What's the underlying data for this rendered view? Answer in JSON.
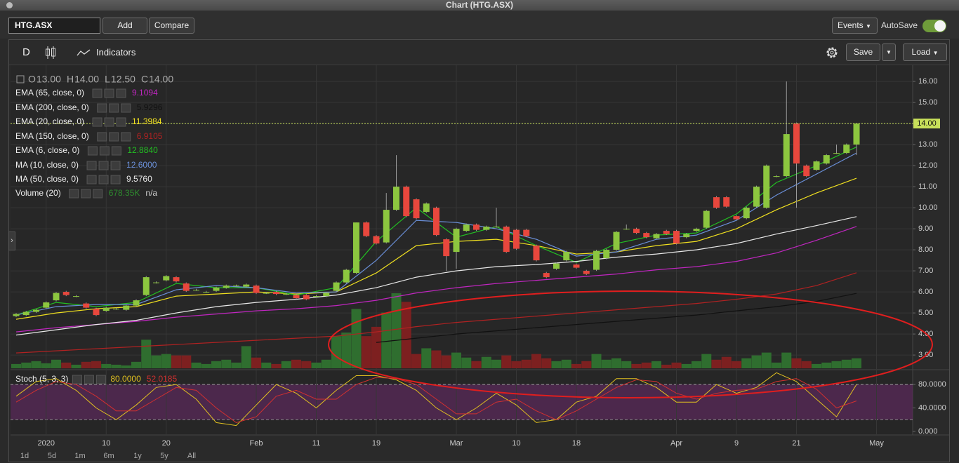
{
  "window": {
    "title": "Chart (HTG.ASX)"
  },
  "toolbar": {
    "symbol": "HTG.ASX",
    "add": "Add",
    "compare": "Compare",
    "events": "Events",
    "autosave": "AutoSave"
  },
  "chart_toolbar": {
    "period": "D",
    "indicators": "Indicators",
    "save": "Save",
    "load": "Load"
  },
  "ranges": [
    "1d",
    "5d",
    "1m",
    "6m",
    "1y",
    "5y",
    "All"
  ],
  "chart_data": {
    "type": "candlestick",
    "ohlc": [
      {
        "key": "O",
        "value": "13.00"
      },
      {
        "key": "H",
        "value": "14.00"
      },
      {
        "key": "L",
        "value": "12.50"
      },
      {
        "key": "C",
        "value": "14.00"
      }
    ],
    "categories": [
      null,
      null,
      null,
      "2020",
      null,
      null,
      null,
      null,
      null,
      "10",
      null,
      null,
      null,
      null,
      null,
      "20",
      null,
      null,
      null,
      null,
      null,
      null,
      null,
      null,
      "Feb",
      null,
      null,
      null,
      null,
      null,
      "11",
      null,
      null,
      null,
      null,
      null,
      "19",
      null,
      null,
      null,
      null,
      null,
      null,
      null,
      "Mar",
      null,
      null,
      null,
      null,
      null,
      "10",
      null,
      null,
      null,
      null,
      null,
      "18",
      null,
      null,
      null,
      null,
      null,
      null,
      null,
      null,
      null,
      "Apr",
      null,
      null,
      null,
      null,
      null,
      "9",
      null,
      null,
      null,
      null,
      null,
      "21",
      null,
      null,
      null,
      null,
      null,
      null,
      null,
      "May"
    ],
    "open": [
      4.85,
      4.9,
      5.05,
      5.25,
      5.6,
      6.0,
      5.8,
      5.45,
      5.2,
      5.1,
      5.2,
      5.15,
      5.35,
      5.85,
      6.45,
      6.55,
      6.7,
      6.4,
      6.1,
      6.0,
      6.05,
      6.2,
      6.3,
      6.25,
      6.3,
      5.95,
      6.0,
      5.9,
      5.85,
      5.85,
      5.8,
      5.8,
      6.05,
      6.45,
      6.9,
      9.3,
      8.65,
      8.35,
      9.9,
      11.0,
      10.4,
      9.8,
      10.0,
      8.5,
      7.9,
      8.9,
      9.2,
      8.95,
      9.1,
      9.1,
      8.95,
      8.95,
      8.2,
      6.9,
      7.1,
      7.5,
      7.3,
      7.0,
      7.05,
      7.6,
      8.0,
      9.0,
      9.0,
      8.8,
      8.55,
      8.9,
      8.9,
      8.6,
      8.9,
      9.05,
      10.5,
      10.5,
      9.6,
      9.5,
      10.05,
      10.0,
      11.5,
      11.5,
      14.0,
      12.0,
      11.8,
      12.1,
      12.6,
      12.6,
      13.0,
      null,
      null
    ],
    "high": [
      5.0,
      5.1,
      5.2,
      5.55,
      6.0,
      6.05,
      5.85,
      5.5,
      5.25,
      5.3,
      5.25,
      5.4,
      5.65,
      6.75,
      6.5,
      6.8,
      6.75,
      6.45,
      6.15,
      6.05,
      6.25,
      6.35,
      6.35,
      6.4,
      6.35,
      6.0,
      6.05,
      5.95,
      5.9,
      5.9,
      5.85,
      6.0,
      6.5,
      7.1,
      9.3,
      9.35,
      8.7,
      10.7,
      12.5,
      11.05,
      10.45,
      10.25,
      10.05,
      8.55,
      9.05,
      9.25,
      9.25,
      9.15,
      10.0,
      9.15,
      9.0,
      9.0,
      8.25,
      6.95,
      7.4,
      7.95,
      7.35,
      7.05,
      8.0,
      8.05,
      8.9,
      9.2,
      9.05,
      8.85,
      8.8,
      8.95,
      8.95,
      8.8,
      9.05,
      9.9,
      10.55,
      10.55,
      9.65,
      10.05,
      11.05,
      12.05,
      11.55,
      16.0,
      14.05,
      12.05,
      12.25,
      12.55,
      13.0,
      13.05,
      14.0,
      null,
      null
    ],
    "low": [
      4.8,
      4.85,
      5.0,
      5.2,
      5.55,
      5.8,
      5.75,
      5.2,
      4.85,
      5.05,
      5.15,
      5.1,
      5.3,
      5.8,
      6.4,
      6.5,
      6.45,
      6.0,
      6.05,
      5.95,
      6.0,
      6.15,
      6.25,
      6.2,
      5.9,
      5.9,
      5.85,
      5.85,
      5.65,
      5.6,
      5.75,
      5.75,
      6.0,
      6.4,
      6.85,
      8.6,
      8.25,
      8.3,
      9.85,
      9.55,
      9.45,
      9.75,
      8.65,
      7.0,
      7.1,
      8.85,
      8.9,
      8.9,
      9.05,
      7.85,
      8.0,
      8.6,
      7.45,
      6.65,
      7.05,
      7.45,
      7.1,
      6.8,
      7.0,
      7.55,
      7.95,
      8.95,
      8.75,
      8.55,
      8.5,
      8.7,
      8.25,
      8.55,
      8.85,
      9.0,
      9.95,
      10.0,
      9.4,
      9.45,
      10.0,
      9.95,
      11.45,
      11.45,
      10.0,
      11.45,
      11.75,
      12.05,
      12.55,
      12.55,
      12.5,
      null,
      null
    ],
    "close": [
      4.95,
      5.05,
      5.15,
      5.5,
      5.95,
      5.85,
      5.8,
      5.25,
      4.9,
      5.25,
      5.2,
      5.35,
      5.6,
      6.7,
      6.45,
      6.75,
      6.5,
      6.05,
      6.1,
      6.0,
      6.2,
      6.3,
      6.3,
      6.35,
      5.95,
      5.95,
      5.9,
      5.9,
      5.7,
      5.65,
      5.8,
      5.95,
      6.45,
      7.05,
      9.3,
      8.65,
      8.3,
      9.9,
      11.0,
      9.6,
      9.5,
      10.2,
      8.7,
      7.7,
      9.0,
      9.2,
      8.95,
      9.1,
      9.1,
      7.9,
      8.05,
      8.65,
      7.5,
      6.7,
      7.35,
      7.9,
      7.15,
      6.85,
      7.95,
      8.0,
      8.85,
      9.0,
      8.8,
      8.6,
      8.75,
      8.75,
      8.3,
      8.75,
      9.0,
      9.85,
      10.0,
      10.05,
      9.45,
      10.0,
      11.0,
      12.0,
      11.5,
      13.5,
      12.1,
      11.5,
      12.2,
      12.5,
      12.6,
      13.0,
      14.0,
      null,
      null
    ],
    "volume": [
      180,
      240,
      300,
      210,
      360,
      240,
      150,
      270,
      300,
      180,
      150,
      120,
      270,
      1200,
      540,
      600,
      540,
      540,
      240,
      180,
      300,
      360,
      240,
      930,
      450,
      240,
      180,
      300,
      360,
      300,
      240,
      360,
      1350,
      1500,
      2490,
      1350,
      1740,
      2340,
      3150,
      2790,
      600,
      840,
      750,
      540,
      660,
      450,
      300,
      480,
      360,
      540,
      300,
      360,
      600,
      420,
      300,
      360,
      180,
      300,
      600,
      360,
      420,
      300,
      180,
      240,
      300,
      150,
      240,
      180,
      300,
      600,
      360,
      480,
      300,
      420,
      540,
      660,
      240,
      660,
      420,
      300,
      180,
      240,
      300,
      360,
      420,
      null,
      null
    ],
    "up_color": "#8cc63f",
    "down_color": "#e8473d",
    "volume_up_color": "#2f6e2f",
    "volume_down_color": "#7d2020",
    "volume_name": "Volume (20)",
    "volume_readout": "678.35K",
    "volume_status": "n/a",
    "volume_readout_color": "#2e8b2e",
    "lines": {
      "x": [
        0,
        4,
        8,
        12,
        16,
        20,
        24,
        28,
        32,
        36,
        40,
        44,
        48,
        52,
        56,
        60,
        64,
        68,
        72,
        76,
        80,
        84
      ],
      "series": [
        {
          "name": "EMA (65, close, 0)",
          "readout": "9.1094",
          "color": "#c026c0",
          "values": [
            4.1,
            4.3,
            4.45,
            4.6,
            4.8,
            4.95,
            5.1,
            5.2,
            5.35,
            5.6,
            5.95,
            6.2,
            6.4,
            6.55,
            6.7,
            6.85,
            7.05,
            7.2,
            7.45,
            7.85,
            8.45,
            9.1094
          ]
        },
        {
          "name": "EMA (200, close, 0)",
          "readout": "5.9296",
          "color": "#111111",
          "values": [
            null,
            null,
            null,
            null,
            null,
            null,
            null,
            null,
            null,
            3.6,
            3.8,
            4.0,
            4.15,
            4.3,
            4.45,
            4.6,
            4.75,
            4.9,
            5.1,
            5.3,
            5.55,
            5.9296
          ]
        },
        {
          "name": "EMA (20, close, 0)",
          "readout": "11.3984",
          "color": "#f0e020",
          "values": [
            4.7,
            5.0,
            5.2,
            5.3,
            5.8,
            5.9,
            6.0,
            5.9,
            6.0,
            6.9,
            8.2,
            8.4,
            8.5,
            8.2,
            7.8,
            7.9,
            8.2,
            8.4,
            9.0,
            9.9,
            10.7,
            11.3984
          ]
        },
        {
          "name": "EMA (150, close, 0)",
          "readout": "6.9105",
          "color": "#b02222",
          "values": [
            3.1,
            3.2,
            3.3,
            3.4,
            3.5,
            3.6,
            3.7,
            3.8,
            3.9,
            4.1,
            4.35,
            4.55,
            4.7,
            4.85,
            5.0,
            5.15,
            5.3,
            5.45,
            5.65,
            5.9,
            6.3,
            6.9105
          ]
        },
        {
          "name": "EMA (6, close, 0)",
          "readout": "12.8840",
          "color": "#22c022",
          "values": [
            4.9,
            5.5,
            5.3,
            5.5,
            6.4,
            6.2,
            6.2,
            5.85,
            6.2,
            8.4,
            10.0,
            8.6,
            9.1,
            8.2,
            7.4,
            8.3,
            8.7,
            8.8,
            9.7,
            11.2,
            12.0,
            12.884
          ]
        },
        {
          "name": "MA (10, close, 0)",
          "readout": "12.6000",
          "color": "#6a8fd8",
          "values": [
            4.9,
            5.3,
            5.4,
            5.4,
            6.1,
            6.3,
            6.2,
            5.95,
            6.0,
            7.5,
            9.4,
            9.3,
            9.0,
            8.5,
            7.7,
            7.9,
            8.5,
            8.7,
            9.4,
            10.6,
            11.6,
            12.6
          ]
        },
        {
          "name": "MA (50, close, 0)",
          "readout": "9.5760",
          "color": "#e8e8e8",
          "values": [
            3.95,
            4.2,
            4.45,
            4.65,
            5.0,
            5.3,
            5.5,
            5.65,
            5.85,
            6.2,
            6.7,
            7.0,
            7.2,
            7.3,
            7.45,
            7.65,
            7.8,
            8.0,
            8.3,
            8.75,
            9.15,
            9.576
          ]
        }
      ]
    },
    "ylim": [
      2.37,
      16.77
    ],
    "yticks": [
      {
        "value": 3,
        "label": "3.00"
      },
      {
        "value": 4,
        "label": "4.00"
      },
      {
        "value": 5,
        "label": "5.00"
      },
      {
        "value": 6,
        "label": "6.00"
      },
      {
        "value": 7,
        "label": "7.00"
      },
      {
        "value": 8,
        "label": "8.00"
      },
      {
        "value": 9,
        "label": "9.00"
      },
      {
        "value": 10,
        "label": "10.00"
      },
      {
        "value": 11,
        "label": "11.00"
      },
      {
        "value": 12,
        "label": "12.00"
      },
      {
        "value": 13,
        "label": "13.00"
      },
      {
        "value": 14,
        "label": "14.00"
      },
      {
        "value": 15,
        "label": "15.00"
      },
      {
        "value": 16,
        "label": "16.00"
      }
    ],
    "last_price": {
      "value": 14,
      "label": "14.00"
    },
    "grid": true,
    "stoch": {
      "name": "Stoch (5, 3, 3)",
      "x": [
        0,
        2,
        4,
        6,
        8,
        10,
        12,
        14,
        16,
        18,
        20,
        22,
        24,
        26,
        28,
        30,
        32,
        34,
        36,
        38,
        40,
        42,
        44,
        46,
        48,
        50,
        52,
        54,
        56,
        58,
        60,
        62,
        64,
        66,
        68,
        70,
        72,
        74,
        76,
        78,
        80,
        82,
        84
      ],
      "series": [
        {
          "readout": "80.0000",
          "color": "#e0c020",
          "values": [
            60,
            85,
            90,
            70,
            40,
            20,
            45,
            75,
            80,
            55,
            15,
            10,
            45,
            80,
            65,
            40,
            70,
            95,
            95,
            88,
            70,
            40,
            20,
            40,
            65,
            45,
            15,
            20,
            50,
            60,
            90,
            90,
            75,
            50,
            50,
            80,
            65,
            75,
            100,
            85,
            55,
            25,
            80
          ]
        },
        {
          "readout": "52.0185",
          "color": "#d03030",
          "values": [
            50,
            70,
            85,
            80,
            60,
            35,
            35,
            55,
            75,
            70,
            40,
            15,
            25,
            60,
            70,
            55,
            55,
            80,
            92,
            90,
            80,
            55,
            30,
            30,
            50,
            55,
            35,
            20,
            35,
            55,
            75,
            88,
            85,
            65,
            55,
            65,
            70,
            72,
            85,
            90,
            72,
            40,
            52.0185
          ]
        }
      ],
      "ylim": [
        -6,
        104
      ],
      "yticks": [
        {
          "value": 0,
          "label": "0.000"
        },
        {
          "value": 40,
          "label": "40.0000"
        },
        {
          "value": 80,
          "label": "80.0000"
        }
      ],
      "bands": [
        20,
        80
      ],
      "band_color": "#5a2a5a"
    }
  }
}
